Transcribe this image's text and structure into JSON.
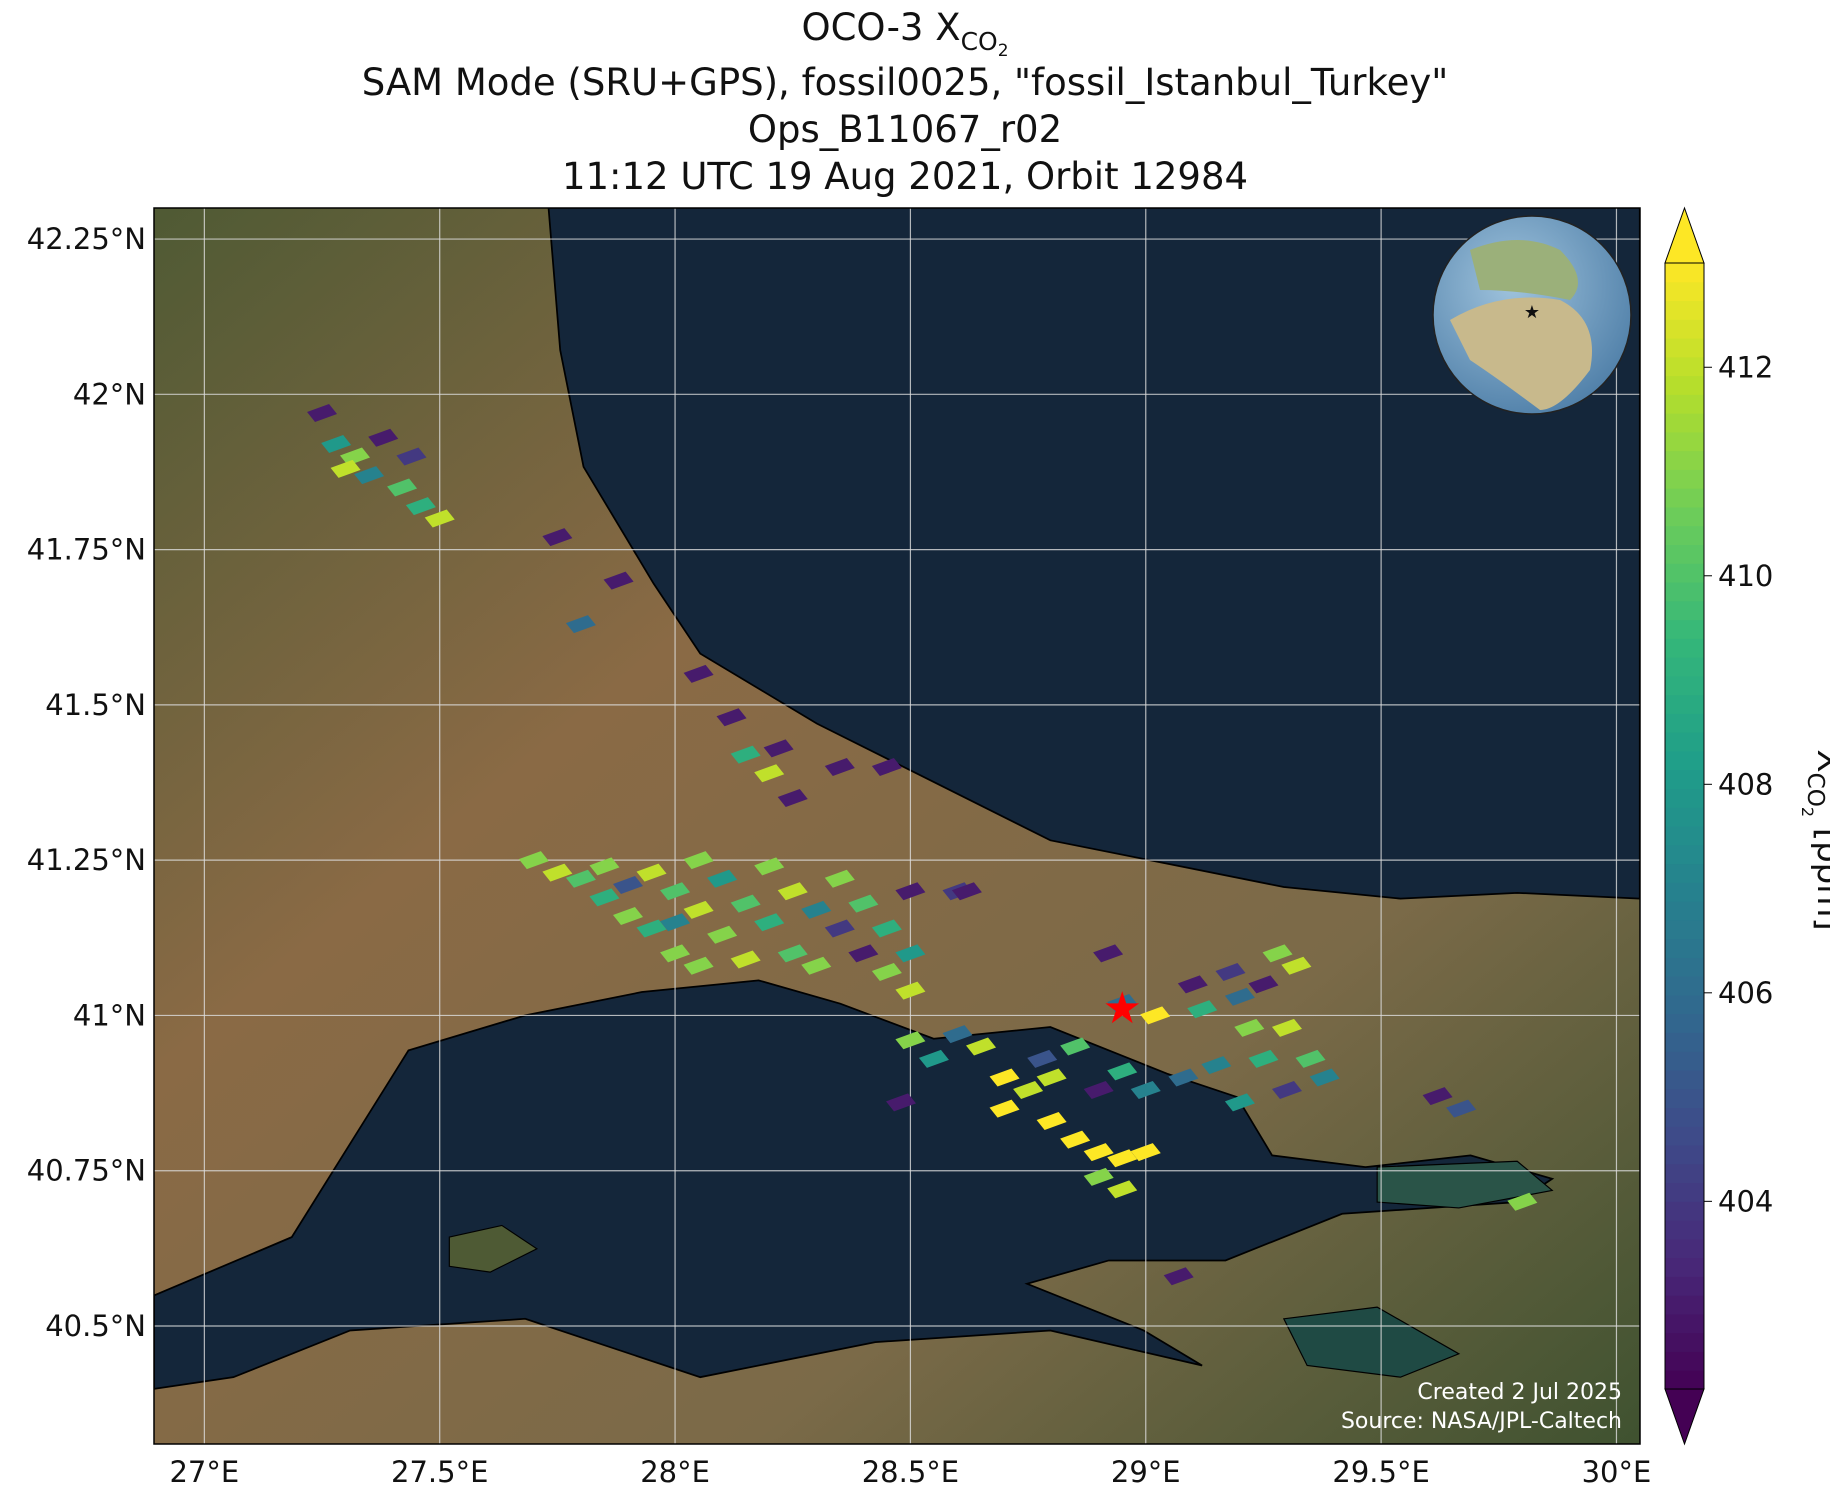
{
  "title": {
    "main": "OCO-3 X",
    "main_sub": "CO",
    "main_subsub": "2",
    "lines": [
      "SAM Mode (SRU+GPS), fossil0025, \"fossil_Istanbul_Turkey\"",
      "Ops_B11067_r02",
      "11:12 UTC 19 Aug 2021, Orbit 12984"
    ]
  },
  "map": {
    "xlim": [
      26.893,
      30.05
    ],
    "ylim": [
      40.31,
      42.3
    ],
    "xticks": [
      {
        "value": 27,
        "label": "27°E"
      },
      {
        "value": 27.5,
        "label": "27.5°E"
      },
      {
        "value": 28,
        "label": "28°E"
      },
      {
        "value": 28.5,
        "label": "28.5°E"
      },
      {
        "value": 29,
        "label": "29°E"
      },
      {
        "value": 29.5,
        "label": "29.5°E"
      },
      {
        "value": 30,
        "label": "30°E"
      }
    ],
    "yticks": [
      {
        "value": 40.5,
        "label": "40.5°N"
      },
      {
        "value": 40.75,
        "label": "40.75°N"
      },
      {
        "value": 41,
        "label": "41°N"
      },
      {
        "value": 41.25,
        "label": "41.25°N"
      },
      {
        "value": 41.5,
        "label": "41.5°N"
      },
      {
        "value": 41.75,
        "label": "41.75°N"
      },
      {
        "value": 42,
        "label": "42°N"
      },
      {
        "value": 42.25,
        "label": "42.25°N"
      }
    ],
    "grid": true,
    "target": {
      "lon": 28.95,
      "lat": 41.01,
      "color": "#ff0000"
    }
  },
  "soundings": {
    "lon": [
      27.25,
      27.28,
      27.32,
      27.35,
      27.38,
      27.42,
      27.46,
      27.5,
      27.3,
      27.44,
      27.75,
      27.88,
      27.8,
      28.05,
      28.12,
      28.15,
      28.2,
      28.22,
      28.35,
      28.45,
      28.25,
      28.5,
      28.6,
      27.7,
      27.75,
      27.8,
      27.85,
      27.85,
      27.9,
      27.9,
      27.95,
      27.95,
      28.0,
      28.0,
      28.0,
      28.05,
      28.05,
      28.05,
      28.1,
      28.1,
      28.15,
      28.15,
      28.2,
      28.2,
      28.25,
      28.25,
      28.3,
      28.3,
      28.35,
      28.35,
      28.4,
      28.4,
      28.45,
      28.45,
      28.5,
      28.5,
      28.5,
      28.55,
      28.6,
      28.65,
      28.7,
      28.7,
      28.75,
      28.8,
      28.8,
      28.85,
      28.9,
      28.9,
      28.95,
      28.95,
      29.0,
      28.78,
      28.85,
      28.9,
      28.95,
      29.0,
      29.1,
      29.12,
      29.18,
      29.2,
      29.22,
      29.25,
      29.25,
      29.3,
      29.28,
      29.32,
      29.35,
      29.38,
      29.3,
      29.15,
      29.08,
      29.2,
      28.92,
      28.95,
      29.02,
      29.62,
      29.67,
      29.8,
      29.07,
      28.48,
      28.62
    ],
    "lat": [
      41.97,
      41.92,
      41.9,
      41.87,
      41.93,
      41.85,
      41.82,
      41.8,
      41.88,
      41.9,
      41.77,
      41.7,
      41.63,
      41.55,
      41.48,
      41.42,
      41.39,
      41.43,
      41.4,
      41.4,
      41.35,
      41.2,
      41.2,
      41.25,
      41.23,
      41.22,
      41.24,
      41.19,
      41.21,
      41.16,
      41.23,
      41.14,
      41.2,
      41.15,
      41.1,
      41.25,
      41.17,
      41.08,
      41.22,
      41.13,
      41.18,
      41.09,
      41.24,
      41.15,
      41.2,
      41.1,
      41.17,
      41.08,
      41.14,
      41.22,
      41.1,
      41.18,
      41.07,
      41.14,
      41.04,
      41.1,
      40.96,
      40.93,
      40.97,
      40.95,
      40.9,
      40.85,
      40.88,
      40.83,
      40.9,
      40.8,
      40.78,
      40.74,
      40.77,
      40.72,
      40.78,
      40.93,
      40.95,
      40.88,
      40.91,
      40.88,
      41.05,
      41.01,
      41.07,
      41.03,
      40.98,
      41.05,
      40.93,
      40.98,
      41.1,
      41.08,
      40.93,
      40.9,
      40.88,
      40.92,
      40.9,
      40.86,
      41.1,
      41.02,
      41.0,
      40.87,
      40.85,
      40.7,
      40.58,
      40.86,
      41.2
    ],
    "xco2": [
      403,
      408,
      411,
      407,
      403,
      410,
      409,
      412,
      412,
      404,
      403,
      403,
      406,
      403,
      403,
      409,
      412,
      403,
      403,
      403,
      403,
      403,
      404,
      411,
      412,
      410,
      411,
      409,
      405,
      411,
      412,
      409,
      410,
      407,
      411,
      411,
      412,
      411,
      408,
      411,
      410,
      412,
      411,
      409,
      412,
      410,
      407,
      411,
      404,
      411,
      403,
      410,
      411,
      409,
      412,
      408,
      411,
      408,
      406,
      412,
      413,
      413,
      412,
      413,
      412,
      413,
      413,
      411,
      413,
      412,
      413,
      405,
      410,
      403,
      409,
      407,
      403,
      409,
      404,
      406,
      411,
      403,
      409,
      412,
      411,
      412,
      410,
      407,
      404,
      407,
      406,
      408,
      403,
      406,
      413,
      403,
      405,
      411,
      403,
      403,
      403
    ]
  },
  "colorbar": {
    "clim": [
      402.2,
      413
    ],
    "ticks": [
      404,
      406,
      408,
      410,
      412
    ],
    "colormap": "viridis",
    "label": "X",
    "label_sub": "CO",
    "label_subsub": "2",
    "label_unit": " [ppm]"
  },
  "credits": [
    "Created 2 Jul 2025",
    "Source: NASA/JPL-Caltech"
  ]
}
